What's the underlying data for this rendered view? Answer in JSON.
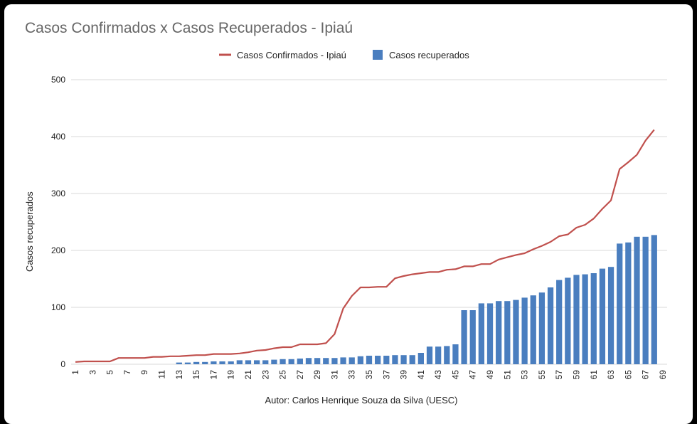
{
  "chart_data": {
    "type": "bar+line",
    "title": "Casos Confirmados x Casos Recuperados - Ipiaú",
    "ylabel": "Casos recuperados",
    "xlabel": "Autor: Carlos Henrique Souza da Silva  (UESC)",
    "ylim": [
      0,
      500
    ],
    "yticks": [
      0,
      100,
      200,
      300,
      400,
      500
    ],
    "grid": true,
    "legend_position": "top-center",
    "x": [
      1,
      2,
      3,
      4,
      5,
      6,
      7,
      8,
      9,
      10,
      11,
      12,
      13,
      14,
      15,
      16,
      17,
      18,
      19,
      20,
      21,
      22,
      23,
      24,
      25,
      26,
      27,
      28,
      29,
      30,
      31,
      32,
      33,
      34,
      35,
      36,
      37,
      38,
      39,
      40,
      41,
      42,
      43,
      44,
      45,
      46,
      47,
      48,
      49,
      50,
      51,
      52,
      53,
      54,
      55,
      56,
      57,
      58,
      59,
      60,
      61,
      62,
      63,
      64,
      65,
      66,
      67,
      68,
      69
    ],
    "xtick_labels": [
      "1",
      "3",
      "5",
      "7",
      "9",
      "11",
      "13",
      "15",
      "17",
      "19",
      "21",
      "23",
      "25",
      "27",
      "29",
      "31",
      "33",
      "35",
      "37",
      "39",
      "41",
      "43",
      "45",
      "47",
      "49",
      "51",
      "53",
      "55",
      "57",
      "59",
      "61",
      "63",
      "65",
      "67",
      "69"
    ],
    "series": [
      {
        "name": "Casos Confirmados - Ipiaú",
        "type": "line",
        "color": "#c0504d",
        "values": [
          4,
          5,
          5,
          5,
          5,
          11,
          11,
          11,
          11,
          13,
          13,
          14,
          14,
          15,
          16,
          16,
          18,
          18,
          18,
          19,
          21,
          24,
          25,
          28,
          30,
          30,
          35,
          35,
          35,
          37,
          53,
          98,
          120,
          135,
          135,
          136,
          136,
          151,
          155,
          158,
          160,
          162,
          162,
          166,
          167,
          172,
          172,
          176,
          176,
          184,
          188,
          192,
          195,
          202,
          208,
          215,
          225,
          228,
          240,
          245,
          256,
          273,
          288,
          343,
          355,
          368,
          393,
          412,
          null
        ]
      },
      {
        "name": "Casos recuperados",
        "type": "bar",
        "color": "#4a7ebf",
        "values": [
          0,
          0,
          0,
          0,
          0,
          0,
          0,
          0,
          0,
          0,
          0,
          0,
          3,
          3,
          4,
          4,
          5,
          5,
          5,
          7,
          7,
          7,
          7,
          8,
          9,
          9,
          10,
          11,
          11,
          11,
          11,
          12,
          12,
          14,
          15,
          15,
          15,
          16,
          16,
          16,
          20,
          31,
          31,
          32,
          35,
          95,
          95,
          107,
          107,
          111,
          111,
          113,
          117,
          121,
          126,
          135,
          148,
          152,
          157,
          158,
          160,
          168,
          171,
          212,
          214,
          224,
          224,
          227,
          null
        ]
      }
    ]
  }
}
